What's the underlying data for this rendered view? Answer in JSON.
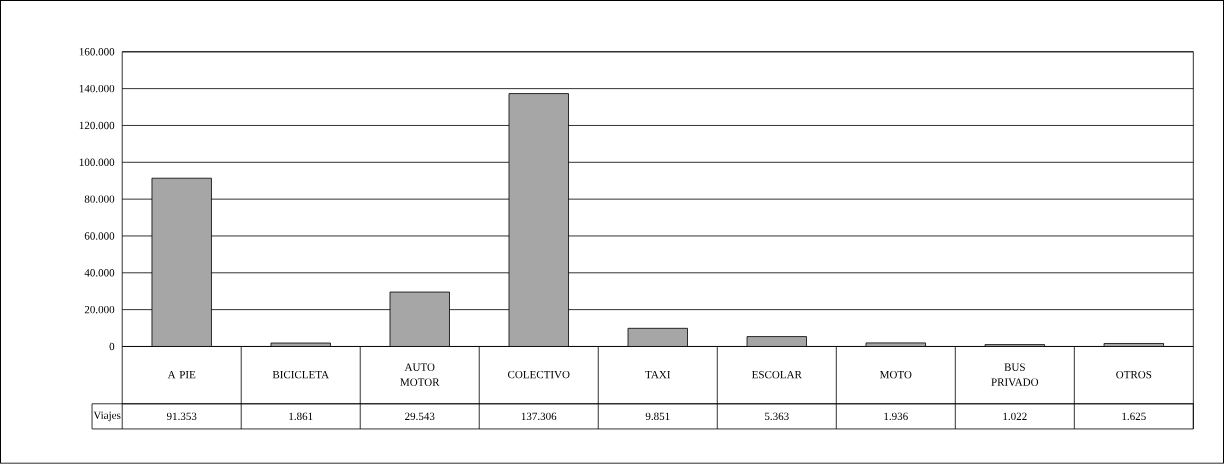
{
  "chart_data": {
    "type": "bar",
    "categories": [
      "A PIE",
      "BICICLETA",
      "AUTO MOTOR",
      "COLECTIVO",
      "TAXI",
      "ESCOLAR",
      "MOTO",
      "BUS PRIVADO",
      "OTROS"
    ],
    "series": [
      {
        "name": "Viajes",
        "color": "#a6a6a6",
        "values": [
          91353,
          1861,
          29543,
          137306,
          9851,
          5363,
          1936,
          1022,
          1625
        ],
        "value_labels": [
          "91.353",
          "1.861",
          "29.543",
          "137.306",
          "9.851",
          "5.363",
          "1.936",
          "1.022",
          "1.625"
        ]
      }
    ],
    "ylim": [
      0,
      160000
    ],
    "yticks": [
      {
        "value": 0,
        "label": "0"
      },
      {
        "value": 20000,
        "label": "20.000"
      },
      {
        "value": 40000,
        "label": "40.000"
      },
      {
        "value": 60000,
        "label": "60.000"
      },
      {
        "value": 80000,
        "label": "80.000"
      },
      {
        "value": 100000,
        "label": "100.000"
      },
      {
        "value": 120000,
        "label": "120.000"
      },
      {
        "value": 140000,
        "label": "140.000"
      },
      {
        "value": 160000,
        "label": "160.000"
      }
    ],
    "grid": "y"
  }
}
